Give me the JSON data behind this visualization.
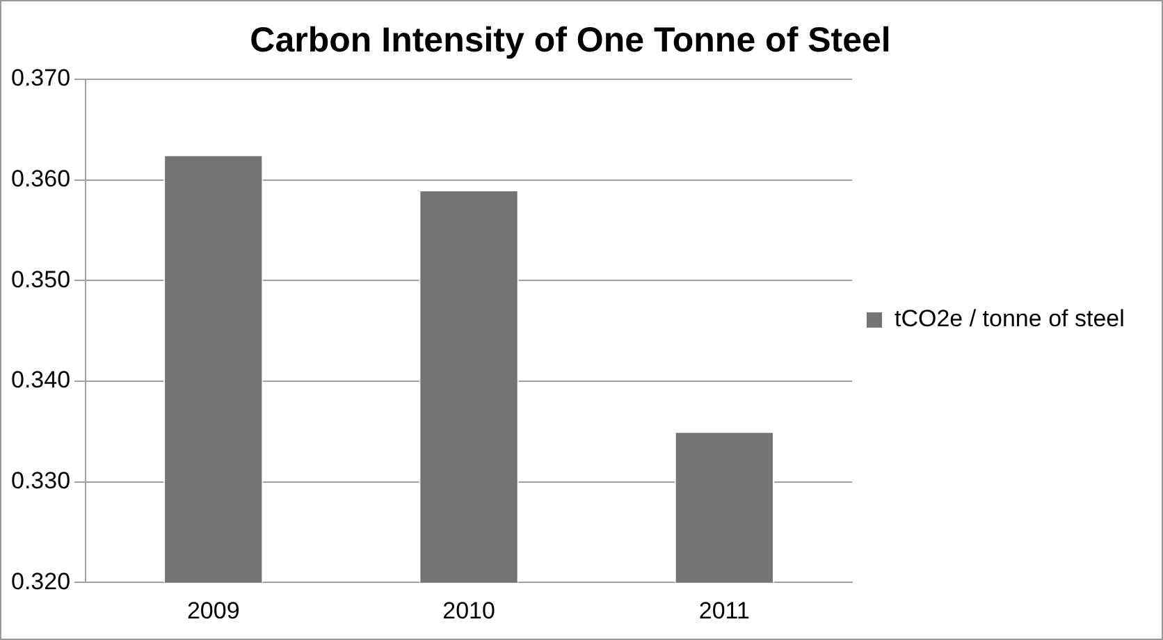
{
  "chart_data": {
    "type": "bar",
    "title": "Carbon Intensity of One Tonne of Steel",
    "categories": [
      "2009",
      "2010",
      "2011"
    ],
    "series": [
      {
        "name": "tCO2e / tonne of steel",
        "color": "#747474",
        "values": [
          0.3625,
          0.359,
          0.335
        ]
      }
    ],
    "ylim": [
      0.32,
      0.37
    ],
    "yticks": [
      {
        "value": 0.32,
        "label": "0.320"
      },
      {
        "value": 0.33,
        "label": "0.330"
      },
      {
        "value": 0.34,
        "label": "0.340"
      },
      {
        "value": 0.35,
        "label": "0.350"
      },
      {
        "value": 0.36,
        "label": "0.360"
      },
      {
        "value": 0.37,
        "label": "0.370"
      }
    ],
    "grid": "y",
    "legend": "right"
  }
}
